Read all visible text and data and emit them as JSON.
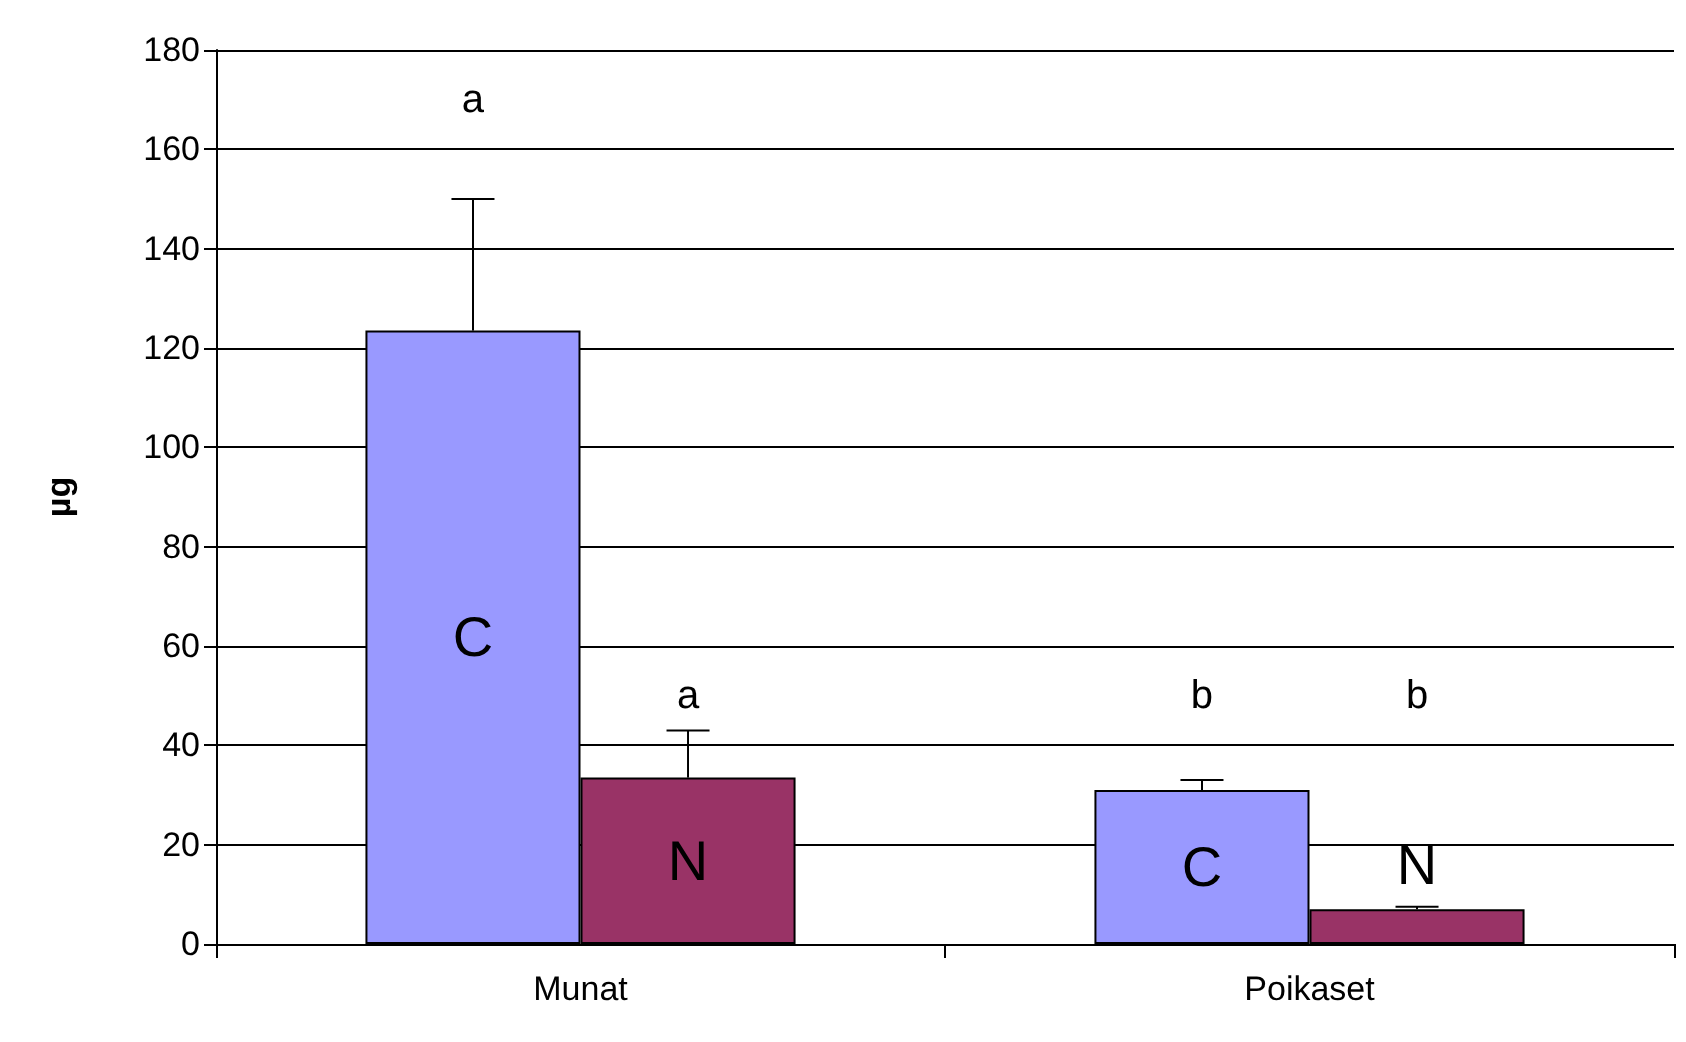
{
  "chart_data": {
    "type": "bar",
    "ylabel": "µg",
    "categories": [
      "Munat",
      "Poikaset"
    ],
    "series": [
      {
        "name": "C",
        "color": "#9999ff",
        "values": [
          123.5,
          31
        ],
        "errors": [
          [
            123.5,
            150
          ],
          [
            31,
            33
          ]
        ]
      },
      {
        "name": "N",
        "color": "#993366",
        "values": [
          33.5,
          7
        ],
        "errors": [
          [
            33.5,
            43
          ],
          [
            7,
            7.5
          ]
        ]
      }
    ],
    "ylim": [
      0,
      180
    ],
    "yticks": [
      0,
      20,
      40,
      60,
      80,
      100,
      120,
      140,
      160,
      180
    ],
    "grid": "y",
    "legend": false,
    "annotations": [
      "a",
      "a",
      "b",
      "b"
    ]
  }
}
